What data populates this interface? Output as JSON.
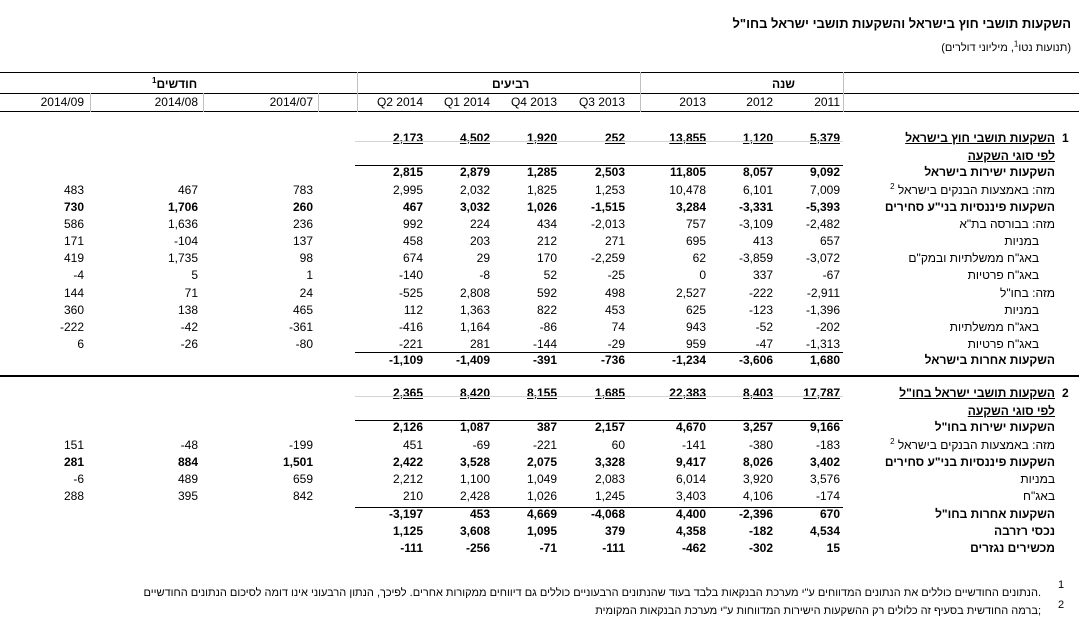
{
  "title": "השקעות תושבי חוץ בישראל והשקעות תושבי ישראל בחו\"ל",
  "subtitle": "(תנועות נטו , מיליוני דולרים)",
  "subtitle_sup": "1",
  "groups": {
    "year": "שנה",
    "quarters": "רביעים",
    "months": "חודשים",
    "months_sup": "1"
  },
  "columns": [
    "2011",
    "2012",
    "2013",
    "Q3 2013",
    "Q4 2013",
    "Q1 2014",
    "Q2 2014",
    "2014/07",
    "2014/08",
    "2014/09"
  ],
  "rows": [
    {
      "num": "1",
      "label": "השקעות תושבי חוץ בישראל",
      "bold": true,
      "ul": true,
      "sum": true,
      "values": [
        "5,379",
        "1,120",
        "13,855",
        "252",
        "1,920",
        "4,502",
        "2,173",
        "",
        "",
        ""
      ]
    },
    {
      "label": "לפי סוגי השקעה",
      "bold": true,
      "ul": true,
      "values": [
        "",
        "",
        "",
        "",
        "",
        "",
        "",
        "",
        "",
        ""
      ]
    },
    {
      "label": "השקעות ישירות בישראל",
      "bold": true,
      "values": [
        "9,092",
        "8,057",
        "11,805",
        "2,503",
        "1,285",
        "2,879",
        "2,815",
        "",
        "",
        ""
      ]
    },
    {
      "label": "מזה: באמצעות הבנקים בישראל",
      "sup": "2",
      "values": [
        "7,009",
        "6,101",
        "10,478",
        "1,253",
        "1,825",
        "2,032",
        "2,995",
        "783",
        "467",
        "483"
      ]
    },
    {
      "label": "השקעות פיננסיות בני\"ע סחירים",
      "bold": true,
      "values": [
        "-5,393",
        "-3,331",
        "3,284",
        "-1,515",
        "1,026",
        "3,032",
        "467",
        "260",
        "1,706",
        "730"
      ]
    },
    {
      "label": "מזה: בבורסה בת\"א",
      "values": [
        "-2,482",
        "-3,109",
        "757",
        "-2,013",
        "434",
        "224",
        "992",
        "236",
        "1,636",
        "586"
      ]
    },
    {
      "label": "במניות",
      "indent": true,
      "values": [
        "657",
        "413",
        "695",
        "271",
        "212",
        "203",
        "458",
        "137",
        "-104",
        "171"
      ]
    },
    {
      "label": "באג\"ח ממשלתיות ובמק\"ם",
      "indent": true,
      "values": [
        "-3,072",
        "-3,859",
        "62",
        "-2,259",
        "170",
        "29",
        "674",
        "98",
        "1,735",
        "419"
      ]
    },
    {
      "label": "באג\"ח פרטיות",
      "indent": true,
      "values": [
        "-67",
        "337",
        "0",
        "-25",
        "52",
        "-8",
        "-140",
        "1",
        "5",
        "-4"
      ]
    },
    {
      "label": "מזה: בחו\"ל",
      "values": [
        "-2,911",
        "-222",
        "2,527",
        "498",
        "592",
        "2,808",
        "-525",
        "24",
        "71",
        "144"
      ]
    },
    {
      "label": "במניות",
      "indent": true,
      "values": [
        "-1,396",
        "-123",
        "625",
        "453",
        "822",
        "1,363",
        "112",
        "465",
        "138",
        "360"
      ]
    },
    {
      "label": "באג\"ח ממשלתיות",
      "indent": true,
      "values": [
        "-202",
        "-52",
        "943",
        "74",
        "-86",
        "1,164",
        "-416",
        "-361",
        "-42",
        "-222"
      ]
    },
    {
      "label": "באג\"ח פרטיות",
      "indent": true,
      "values": [
        "-1,313",
        "-47",
        "959",
        "-29",
        "-144",
        "281",
        "-221",
        "-80",
        "-26",
        "6"
      ]
    },
    {
      "label": "השקעות אחרות בישראל",
      "bold": true,
      "values": [
        "1,680",
        "-3,606",
        "-1,234",
        "-736",
        "-391",
        "-1,409",
        "-1,109",
        "",
        "",
        ""
      ]
    },
    {
      "num": "2",
      "label": "השקעות תושבי ישראל בחו\"ל",
      "bold": true,
      "ul": true,
      "sum": true,
      "values": [
        "17,787",
        "8,403",
        "22,383",
        "1,685",
        "8,155",
        "8,420",
        "2,365",
        "",
        "",
        ""
      ]
    },
    {
      "label": "לפי סוגי השקעה",
      "bold": true,
      "ul": true,
      "values": [
        "",
        "",
        "",
        "",
        "",
        "",
        "",
        "",
        "",
        ""
      ]
    },
    {
      "label": "השקעות ישירות בחו\"ל",
      "bold": true,
      "values": [
        "9,166",
        "3,257",
        "4,670",
        "2,157",
        "387",
        "1,087",
        "2,126",
        "",
        "",
        ""
      ]
    },
    {
      "label": "מזה: באמצעות הבנקים בישראל",
      "sup": "2",
      "values": [
        "-183",
        "-380",
        "-141",
        "60",
        "-221",
        "-69",
        "451",
        "-199",
        "-48",
        "151"
      ]
    },
    {
      "label": "השקעות פיננסיות בני\"ע סחירים",
      "bold": true,
      "values": [
        "3,402",
        "8,026",
        "9,417",
        "3,328",
        "2,075",
        "3,528",
        "2,422",
        "1,501",
        "884",
        "281"
      ]
    },
    {
      "label": "במניות",
      "values": [
        "3,576",
        "3,920",
        "6,014",
        "2,083",
        "1,049",
        "1,100",
        "2,212",
        "659",
        "489",
        "-6"
      ]
    },
    {
      "label": "באג\"ח",
      "values": [
        "-174",
        "4,106",
        "3,403",
        "1,245",
        "1,026",
        "2,428",
        "210",
        "842",
        "395",
        "288"
      ]
    },
    {
      "label": "השקעות אחרות בחו\"ל",
      "bold": true,
      "values": [
        "670",
        "-2,396",
        "4,400",
        "-4,068",
        "4,669",
        "453",
        "-3,197",
        "",
        "",
        ""
      ]
    },
    {
      "label": "נכסי רזרבה",
      "bold": true,
      "values": [
        "4,534",
        "-182",
        "4,358",
        "379",
        "1,095",
        "3,608",
        "1,125",
        "",
        "",
        ""
      ]
    },
    {
      "label": "מכשירים נגזרים",
      "bold": true,
      "values": [
        "15",
        "-302",
        "-462",
        "-111",
        "-71",
        "-256",
        "-111",
        "",
        "",
        ""
      ]
    }
  ],
  "footnotes": [
    {
      "num": "1",
      "text": "הנתונים החודשיים כוללים את הנתונים המדווחים ע\"י מערכת הבנקאות בלבד בעוד שהנתונים הרבעוניים כוללים גם דיווחים ממקורות אחרים. לפיכך, הנתון הרבעוני אינו דומה לסיכום הנתונים החודשיים."
    },
    {
      "num": "2",
      "text": "ברמה החודשית בסעיף זה כלולים רק ההשקעות הישירות המדווחות ע\"י מערכת הבנקאות המקומית;"
    }
  ]
}
